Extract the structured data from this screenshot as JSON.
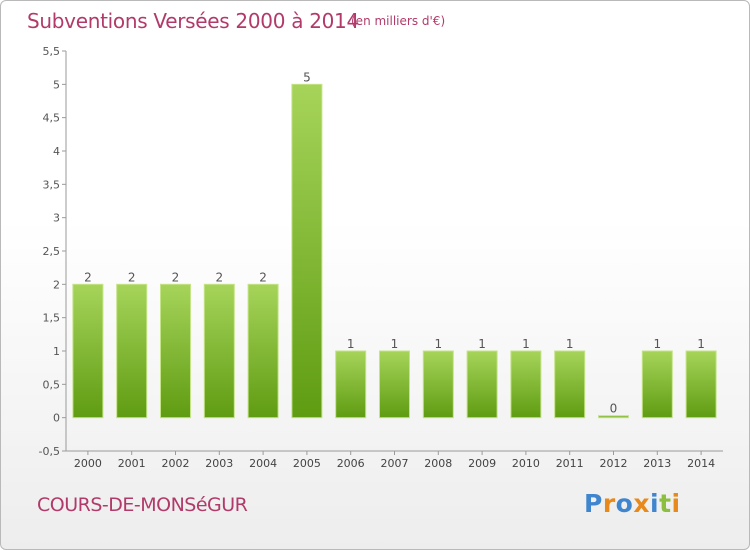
{
  "header": {
    "title": "Subventions Versées 2000 à 2014",
    "unit": "(en milliers d'€)"
  },
  "footer": {
    "commune": "COURS-DE-MONSéGUR",
    "brand": "Proxiti",
    "brand_letters": [
      {
        "ch": "P",
        "color": "#3f86cf"
      },
      {
        "ch": "r",
        "color": "#e8891c"
      },
      {
        "ch": "o",
        "color": "#3f86cf"
      },
      {
        "ch": "x",
        "color": "#e8891c"
      },
      {
        "ch": "i",
        "color": "#3f86cf"
      },
      {
        "ch": "t",
        "color": "#8cbf3f"
      },
      {
        "ch": "i",
        "color": "#e8891c"
      }
    ]
  },
  "chart_data": {
    "type": "bar",
    "categories": [
      "2000",
      "2001",
      "2002",
      "2003",
      "2004",
      "2005",
      "2006",
      "2007",
      "2008",
      "2009",
      "2010",
      "2011",
      "2012",
      "2013",
      "2014"
    ],
    "values": [
      2,
      2,
      2,
      2,
      2,
      5,
      1,
      1,
      1,
      1,
      1,
      1,
      0,
      1,
      1
    ],
    "data_labels": [
      "2",
      "2",
      "2",
      "2",
      "2",
      "5",
      "1",
      "1",
      "1",
      "1",
      "1",
      "1",
      "0",
      "1",
      "1"
    ],
    "ylim": [
      -0.5,
      5.5
    ],
    "yticks": [
      -0.5,
      0,
      0.5,
      1,
      1.5,
      2,
      2.5,
      3,
      3.5,
      4,
      4.5,
      5,
      5.5
    ],
    "ytick_labels": [
      "-0,5",
      "0",
      "0,5",
      "1",
      "1,5",
      "2",
      "2,5",
      "3",
      "3,5",
      "4",
      "4,5",
      "5",
      "5,5"
    ],
    "grid": false,
    "bar_color_top": "#a6d45a",
    "bar_color_bottom": "#5f9c12"
  }
}
